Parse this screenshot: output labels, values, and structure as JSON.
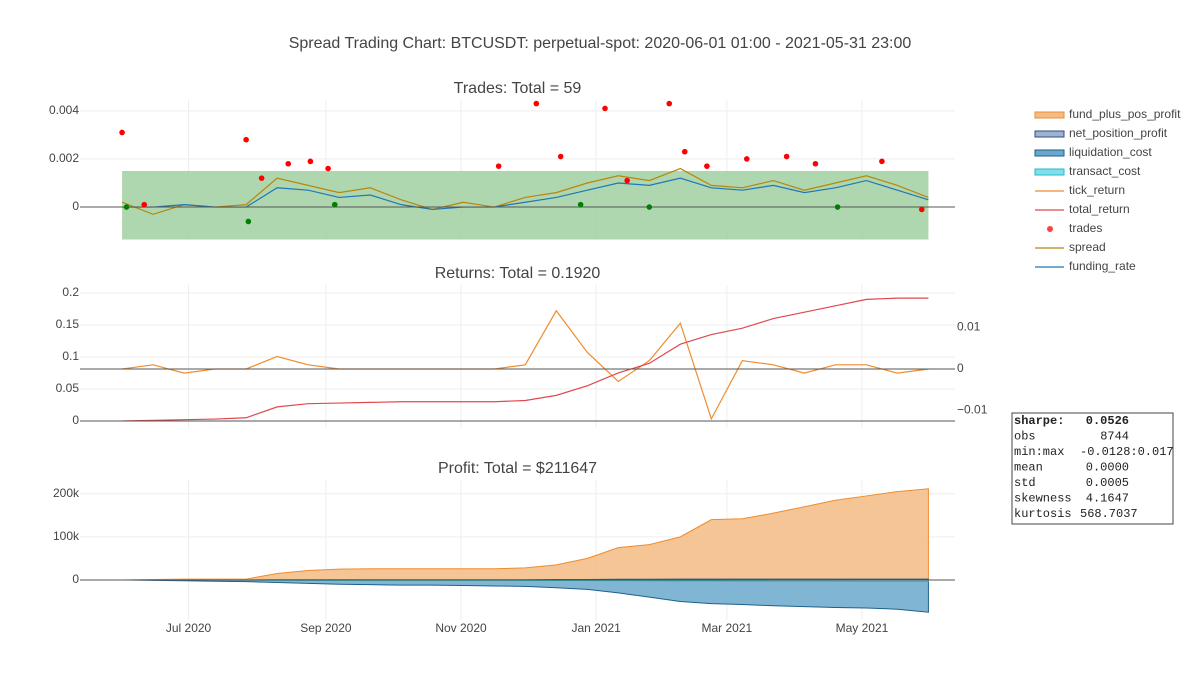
{
  "title": "Spread Trading Chart: BTCUSDT: perpetual-spot: 2020-06-01 01:00 - 2021-05-31 23:00",
  "chart_data": [
    {
      "type": "line",
      "title": "Trades: Total = 59",
      "x": [
        "2020-06-01",
        "2020-06-15",
        "2020-06-29",
        "2020-07-13",
        "2020-07-27",
        "2020-08-10",
        "2020-08-24",
        "2020-09-07",
        "2020-09-21",
        "2020-10-05",
        "2020-10-19",
        "2020-11-02",
        "2020-11-16",
        "2020-11-30",
        "2020-12-14",
        "2020-12-28",
        "2021-01-11",
        "2021-01-25",
        "2021-02-08",
        "2021-02-22",
        "2021-03-08",
        "2021-03-22",
        "2021-04-05",
        "2021-04-19",
        "2021-05-03",
        "2021-05-17",
        "2021-05-31"
      ],
      "xlim": [
        "2020-05-13",
        "2021-06-12"
      ],
      "ylim": [
        -0.00137,
        0.00445
      ],
      "yticks": [
        0,
        0.002,
        0.004
      ],
      "grid": true,
      "band": [
        -0.00135,
        0.0015
      ],
      "band_color": "#a6d3a6",
      "series": [
        {
          "name": "trades",
          "type": "scatter",
          "x": [
            "2020-06-01",
            "2020-06-03",
            "2020-06-11",
            "2020-07-27",
            "2020-07-28",
            "2020-08-03",
            "2020-08-15",
            "2020-08-25",
            "2020-09-02",
            "2020-09-05",
            "2020-11-18",
            "2020-12-05",
            "2020-12-16",
            "2020-12-25",
            "2021-01-05",
            "2021-01-15",
            "2021-01-25",
            "2021-02-03",
            "2021-02-10",
            "2021-02-20",
            "2021-03-10",
            "2021-03-28",
            "2021-04-10",
            "2021-04-20",
            "2021-05-10",
            "2021-05-28"
          ],
          "values": [
            0.0031,
            0.0,
            0.0001,
            0.0028,
            -0.0006,
            0.0012,
            0.0018,
            0.0019,
            0.0016,
            0.0001,
            0.0017,
            0.0043,
            0.0021,
            0.0001,
            0.0041,
            0.0011,
            0.0,
            0.0043,
            0.0023,
            0.0017,
            0.002,
            0.0021,
            0.0018,
            0.0,
            0.0019,
            -0.0001
          ],
          "colors": [
            "#ff0000",
            "#008000",
            "#ff0000",
            "#ff0000",
            "#008000",
            "#ff0000",
            "#ff0000",
            "#ff0000",
            "#ff0000",
            "#008000",
            "#ff0000",
            "#ff0000",
            "#ff0000",
            "#008000",
            "#ff0000",
            "#ff0000",
            "#008000",
            "#ff0000",
            "#ff0000",
            "#ff0000",
            "#ff0000",
            "#ff0000",
            "#ff0000",
            "#008000",
            "#ff0000",
            "#ff0000"
          ],
          "color": "#ff4040"
        },
        {
          "name": "spread",
          "color": "#b8860b",
          "values": [
            0.0002,
            -0.0003,
            0.0001,
            0.0,
            0.0001,
            0.0012,
            0.0009,
            0.0006,
            0.0008,
            0.0003,
            -0.0001,
            0.0002,
            0.0,
            0.0004,
            0.0006,
            0.001,
            0.0013,
            0.0011,
            0.0016,
            0.0009,
            0.0008,
            0.0011,
            0.0007,
            0.001,
            0.0013,
            0.0009,
            0.0004
          ]
        },
        {
          "name": "funding_rate",
          "color": "#1f77b4",
          "values": [
            0.0,
            0.0,
            0.0001,
            0.0,
            0.0,
            0.0008,
            0.0007,
            0.0004,
            0.0005,
            0.0001,
            -0.0001,
            0.0,
            0.0,
            0.0002,
            0.0004,
            0.0007,
            0.001,
            0.0009,
            0.0012,
            0.0008,
            0.0007,
            0.0009,
            0.0006,
            0.0008,
            0.0011,
            0.0007,
            0.0003
          ]
        }
      ]
    },
    {
      "type": "line",
      "title": "Returns: Total = 0.1920",
      "x": [
        "2020-06-01",
        "2020-06-15",
        "2020-06-29",
        "2020-07-13",
        "2020-07-27",
        "2020-08-10",
        "2020-08-24",
        "2020-09-07",
        "2020-09-21",
        "2020-10-05",
        "2020-10-19",
        "2020-11-02",
        "2020-11-16",
        "2020-11-30",
        "2020-12-14",
        "2020-12-28",
        "2021-01-11",
        "2021-01-25",
        "2021-02-08",
        "2021-02-22",
        "2021-03-08",
        "2021-03-22",
        "2021-04-05",
        "2021-04-19",
        "2021-05-03",
        "2021-05-17",
        "2021-05-31"
      ],
      "xlim": [
        "2020-05-13",
        "2021-06-12"
      ],
      "ylim": [
        -0.011,
        0.2125
      ],
      "yticks": [
        0,
        0.05,
        0.1,
        0.15,
        0.2
      ],
      "y2lim": [
        -0.0142,
        0.0202
      ],
      "y2ticks": [
        0.01,
        0,
        {
          "value": -0.01,
          "label": "−0.01"
        }
      ],
      "grid": true,
      "series": [
        {
          "name": "tick_return",
          "color": "#ef8c2f",
          "axis": "y2",
          "values": [
            0,
            0.001,
            -0.001,
            0,
            0,
            0.003,
            0.001,
            0,
            0,
            0,
            0,
            0,
            0,
            0.001,
            0.014,
            0.004,
            -0.003,
            0.002,
            0.011,
            -0.012,
            0.002,
            0.001,
            -0.001,
            0.001,
            0.001,
            -0.001,
            0
          ]
        },
        {
          "name": "total_return",
          "color": "#e0484f",
          "values": [
            0,
            0.001,
            0.002,
            0.003,
            0.005,
            0.022,
            0.027,
            0.028,
            0.029,
            0.03,
            0.03,
            0.03,
            0.03,
            0.032,
            0.04,
            0.055,
            0.075,
            0.09,
            0.12,
            0.135,
            0.145,
            0.16,
            0.17,
            0.18,
            0.19,
            0.192,
            0.192
          ]
        }
      ]
    },
    {
      "type": "area",
      "title": "Profit: Total = $211647",
      "x": [
        "2020-06-01",
        "2020-06-15",
        "2020-06-29",
        "2020-07-13",
        "2020-07-27",
        "2020-08-10",
        "2020-08-24",
        "2020-09-07",
        "2020-09-21",
        "2020-10-05",
        "2020-10-19",
        "2020-11-02",
        "2020-11-16",
        "2020-11-30",
        "2020-12-14",
        "2020-12-28",
        "2021-01-11",
        "2021-01-25",
        "2021-02-08",
        "2021-02-22",
        "2021-03-08",
        "2021-03-22",
        "2021-04-05",
        "2021-04-19",
        "2021-05-03",
        "2021-05-17",
        "2021-05-31"
      ],
      "xlim": [
        "2020-05-13",
        "2021-06-12"
      ],
      "xticks": [
        {
          "value": "2020-07-01",
          "label": "Jul 2020"
        },
        {
          "value": "2020-09-01",
          "label": "Sep 2020"
        },
        {
          "value": "2020-11-01",
          "label": "Nov 2020"
        },
        {
          "value": "2021-01-01",
          "label": "Jan 2021"
        },
        {
          "value": "2021-03-01",
          "label": "Mar 2021"
        },
        {
          "value": "2021-05-01",
          "label": "May 2021"
        }
      ],
      "ylim": [
        -93000,
        232000
      ],
      "yticks": [
        0,
        {
          "value": 100000,
          "label": "100k"
        },
        {
          "value": 200000,
          "label": "200k"
        }
      ],
      "grid": true,
      "series": [
        {
          "name": "fund_plus_pos_profit",
          "color": "#ef8c2f",
          "fill": "#f5bb84",
          "values": [
            0,
            1000,
            2000,
            2000,
            2000,
            15000,
            22000,
            25000,
            26000,
            26000,
            26000,
            26000,
            26000,
            28000,
            35000,
            50000,
            75000,
            82000,
            100000,
            140000,
            142000,
            155000,
            170000,
            185000,
            195000,
            205000,
            211647
          ]
        },
        {
          "name": "net_position_profit",
          "color": "#2f4f7f",
          "fill": "#9db3cf",
          "values": [
            0,
            0,
            0,
            0,
            0,
            500,
            500,
            500,
            500,
            500,
            500,
            500,
            500,
            500,
            1000,
            1000,
            1500,
            1500,
            2000,
            2000,
            2000,
            2000,
            2000,
            2000,
            2000,
            2000,
            2000
          ]
        },
        {
          "name": "liquidation_cost",
          "color": "#1f5f8b",
          "fill": "#6aa9cc",
          "values": [
            0,
            -1000,
            -2000,
            -3000,
            -4000,
            -6000,
            -8000,
            -10000,
            -11000,
            -12000,
            -12000,
            -13000,
            -14000,
            -15000,
            -18000,
            -22000,
            -30000,
            -40000,
            -50000,
            -55000,
            -57000,
            -60000,
            -62000,
            -64000,
            -65000,
            -68000,
            -75000
          ]
        },
        {
          "name": "transact_cost",
          "color": "#17becf",
          "fill": "#86dde8",
          "values": [
            0,
            -200,
            -200,
            -300,
            -500,
            -700,
            -900,
            -1000,
            -1000,
            -1100,
            -1100,
            -1100,
            -1100,
            -1200,
            -1400,
            -1600,
            -1900,
            -2100,
            -2400,
            -2600,
            -2700,
            -2900,
            -3000,
            -3100,
            -3200,
            -3300,
            -3400
          ]
        }
      ]
    }
  ],
  "stats": {
    "rows": [
      [
        "sharpe:",
        "0.0526"
      ],
      [
        "obs",
        "8744"
      ],
      [
        "min:max",
        "-0.0128:0.017"
      ],
      [
        "mean",
        "0.0000"
      ],
      [
        "std",
        "0.0005"
      ],
      [
        "skewness",
        "4.1647"
      ],
      [
        "kurtosis",
        "568.7037"
      ]
    ]
  }
}
